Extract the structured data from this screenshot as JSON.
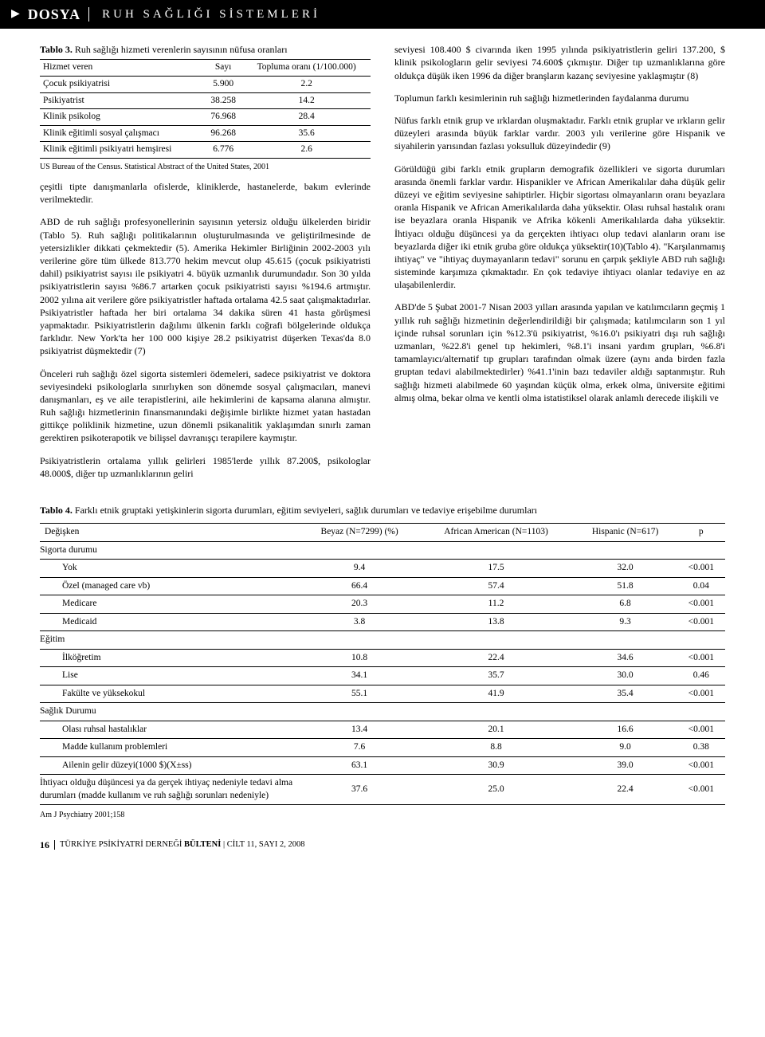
{
  "header": {
    "dosya": "DOSYA",
    "subtitle": "RUH SAĞLIĞI SİSTEMLERİ"
  },
  "table3": {
    "caption_bold": "Tablo 3.",
    "caption_rest": " Ruh sağlığı hizmeti verenlerin sayısının nüfusa oranları",
    "columns": [
      "Hizmet veren",
      "Sayı",
      "Topluma oranı (1/100.000)"
    ],
    "rows": [
      [
        "Çocuk psikiyatrisi",
        "5.900",
        "2.2"
      ],
      [
        "Psikiyatrist",
        "38.258",
        "14.2"
      ],
      [
        "Klinik psikolog",
        "76.968",
        "28.4"
      ],
      [
        "Klinik eğitimli sosyal çalışmacı",
        "96.268",
        "35.6"
      ],
      [
        "Klinik eğitimli psikiyatri hemşiresi",
        "6.776",
        "2.6"
      ]
    ],
    "source": "US Bureau of the Census. Statistical Abstract of the United States, 2001"
  },
  "colL": {
    "p1": "çeşitli tipte danışmanlarla ofislerde, kliniklerde, hastanelerde, bakım evlerinde verilmektedir.",
    "p2": "ABD de ruh sağlığı profesyonellerinin sayısının yetersiz olduğu ülkelerden biridir (Tablo 5). Ruh sağlığı politikalarının oluşturulmasında ve geliştirilmesinde de yetersizlikler dikkati çekmektedir (5). Amerika Hekimler Birliğinin 2002-2003 yılı verilerine göre tüm ülkede 813.770 hekim mevcut olup 45.615 (çocuk psikiyatristi dahil) psikiyatrist sayısı ile psikiyatri 4. büyük uzmanlık durumundadır. Son 30 yılda psikiyatristlerin sayısı %86.7 artarken çocuk psikiyatristi sayısı %194.6 artmıştır. 2002 yılına ait verilere göre psikiyatristler haftada ortalama 42.5 saat çalışmaktadırlar. Psikiyatristler haftada her biri ortalama 34 dakika süren 41 hasta görüşmesi yapmaktadır. Psikiyatristlerin dağılımı ülkenin farklı coğrafi bölgelerinde oldukça farklıdır. New York'ta her 100 000 kişiye 28.2 psikiyatrist düşerken Texas'da 8.0 psikiyatrist düşmektedir (7)",
    "p3": "Önceleri ruh sağlığı özel sigorta sistemleri ödemeleri, sadece psikiyatrist ve doktora seviyesindeki psikologlarla sınırlıyken son dönemde sosyal çalışmacıları, manevi danışmanları, eş ve aile terapistlerini, aile hekimlerini de kapsama alanına almıştır. Ruh sağlığı hizmetlerinin finansmanındaki değişimle birlikte hizmet yatan hastadan gittikçe poliklinik hizmetine, uzun dönemli psikanalitik yaklaşımdan sınırlı zaman gerektiren psikoterapotik ve bilişsel davranışçı terapilere kaymıştır.",
    "p4": "Psikiyatristlerin ortalama yıllık gelirleri 1985'lerde yıllık 87.200$, psikologlar 48.000$, diğer tıp uzmanlıklarının geliri"
  },
  "colR": {
    "p1": "seviyesi 108.400 $ civarında iken 1995 yılında psikiyatristlerin geliri 137.200, $ klinik psikologların gelir seviyesi 74.600$ çıkmıştır. Diğer tıp uzmanlıklarına göre oldukça düşük iken 1996 da diğer branşların kazanç seviyesine yaklaşmıştır (8)",
    "p2": "Toplumun farklı kesimlerinin ruh sağlığı hizmetlerinden faydalanma durumu",
    "p3": "Nüfus farklı etnik grup ve ırklardan oluşmaktadır. Farklı etnik gruplar ve ırkların gelir düzeyleri arasında büyük farklar vardır. 2003 yılı verilerine göre Hispanik ve siyahilerin yarısından fazlası yoksulluk düzeyindedir (9)",
    "p4": "Görüldüğü gibi farklı etnik grupların demografik özellikleri ve sigorta durumları arasında önemli farklar vardır. Hispanikler ve African Amerikalılar daha düşük gelir düzeyi ve eğitim seviyesine sahiptirler. Hiçbir sigortası olmayanların oranı beyazlara oranla Hispanik ve African Amerikalılarda daha yüksektir. Olası ruhsal hastalık oranı ise beyazlara oranla Hispanik ve Afrika kökenli Amerikalılarda daha yüksektir. İhtiyacı olduğu düşüncesi ya da gerçekten ihtiyacı olup tedavi alanların oranı ise beyazlarda diğer iki etnik gruba göre oldukça yüksektir(10)(Tablo 4). \"Karşılanmamış ihtiyaç\" ve \"ihtiyaç duymayanların tedavi\" sorunu en çarpık şekliyle ABD ruh sağlığı sisteminde karşımıza çıkmaktadır. En çok tedaviye ihtiyacı olanlar tedaviye en az ulaşabilenlerdir.",
    "p5": "ABD'de 5 Şubat 2001-7 Nisan 2003 yılları arasında yapılan ve katılımcıların geçmiş 1 yıllık ruh sağlığı hizmetinin değerlendirildiği bir çalışmada; katılımcıların son 1 yıl içinde ruhsal sorunları için %12.3'ü psikiyatrist, %16.0'ı psikiyatri dışı ruh sağlığı uzmanları, %22.8'i genel tıp hekimleri, %8.1'i insani yardım grupları, %6.8'i tamamlayıcı/alternatif tıp grupları tarafından olmak üzere (aynı anda birden fazla gruptan tedavi alabilmektedirler) %41.1'inin bazı tedaviler aldığı saptanmıştır. Ruh sağlığı hizmeti alabilmede 60 yaşından küçük olma, erkek olma, üniversite eğitimi almış olma, bekar olma ve kentli olma istatistiksel olarak anlamlı derecede ilişkili ve"
  },
  "table4": {
    "caption_bold": "Tablo 4.",
    "caption_rest": " Farklı etnik gruptaki yetişkinlerin sigorta durumları, eğitim seviyeleri, sağlık durumları ve tedaviye erişebilme durumları",
    "columns": [
      "Değişken",
      "Beyaz (N=7299) (%)",
      "African American (N=1103)",
      "Hispanic (N=617)",
      "p"
    ],
    "sections": [
      {
        "label": "Sigorta durumu",
        "rows": [
          [
            "Yok",
            "9.4",
            "17.5",
            "32.0",
            "<0.001"
          ],
          [
            "Özel (managed care vb)",
            "66.4",
            "57.4",
            "51.8",
            "0.04"
          ],
          [
            "Medicare",
            "20.3",
            "11.2",
            "6.8",
            "<0.001"
          ],
          [
            "Medicaid",
            "3.8",
            "13.8",
            "9.3",
            "<0.001"
          ]
        ]
      },
      {
        "label": "Eğitim",
        "rows": [
          [
            "İlköğretim",
            "10.8",
            "22.4",
            "34.6",
            "<0.001"
          ],
          [
            "Lise",
            "34.1",
            "35.7",
            "30.0",
            "0.46"
          ],
          [
            "Fakülte ve yüksekokul",
            "55.1",
            "41.9",
            "35.4",
            "<0.001"
          ]
        ]
      },
      {
        "label": "Sağlık Durumu",
        "rows": [
          [
            "Olası ruhsal hastalıklar",
            "13.4",
            "20.1",
            "16.6",
            "<0.001"
          ],
          [
            "Madde kullanım problemleri",
            "7.6",
            "8.8",
            "9.0",
            "0.38"
          ],
          [
            "Ailenin gelir düzeyi(1000 $)(X±ss)",
            "63.1",
            "30.9",
            "39.0",
            "<0.001"
          ]
        ]
      }
    ],
    "longrow": [
      "İhtiyacı olduğu düşüncesi ya da gerçek ihtiyaç nedeniyle tedavi alma durumları (madde kullanım ve ruh sağlığı sorunları nedeniyle)",
      "37.6",
      "25.0",
      "22.4",
      "<0.001"
    ],
    "source": "Am J Psychiatry 2001;158"
  },
  "footer": {
    "page": "16",
    "journal_bold": "TÜRKİYE PSİKİYATRİ DERNEĞİ ",
    "journal_ital": "BÜLTENİ",
    "vol": " | CİLT 11, SAYI 2, 2008"
  }
}
